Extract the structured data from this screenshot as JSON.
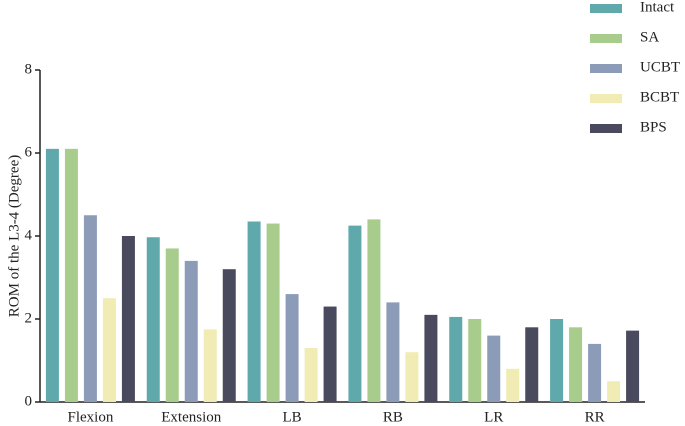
{
  "chart_data": {
    "type": "bar",
    "y_label": "ROM of the L3-4 (Degree)",
    "categories": [
      "Flexion",
      "Extension",
      "LB",
      "RB",
      "LR",
      "RR"
    ],
    "series": [
      {
        "name": "Intact",
        "color": "#5fa9ad",
        "values": [
          6.1,
          3.97,
          4.35,
          4.25,
          2.05,
          2.0
        ]
      },
      {
        "name": "SA",
        "color": "#a8cc8c",
        "values": [
          6.1,
          3.7,
          4.3,
          4.4,
          2.0,
          1.8
        ]
      },
      {
        "name": "UCBT",
        "color": "#8c9bb8",
        "values": [
          4.5,
          3.4,
          2.6,
          2.4,
          1.6,
          1.4
        ]
      },
      {
        "name": "BCBT",
        "color": "#f0ecb4",
        "values": [
          2.5,
          1.75,
          1.3,
          1.2,
          0.8,
          0.5
        ]
      },
      {
        "name": "BPS",
        "color": "#4a4a5e",
        "values": [
          4.0,
          3.2,
          2.3,
          2.1,
          1.8,
          1.72
        ]
      }
    ],
    "ylim": [
      0,
      8
    ],
    "yticks": [
      0,
      2,
      4,
      6,
      8
    ],
    "grid": false,
    "legend": "top-right"
  }
}
